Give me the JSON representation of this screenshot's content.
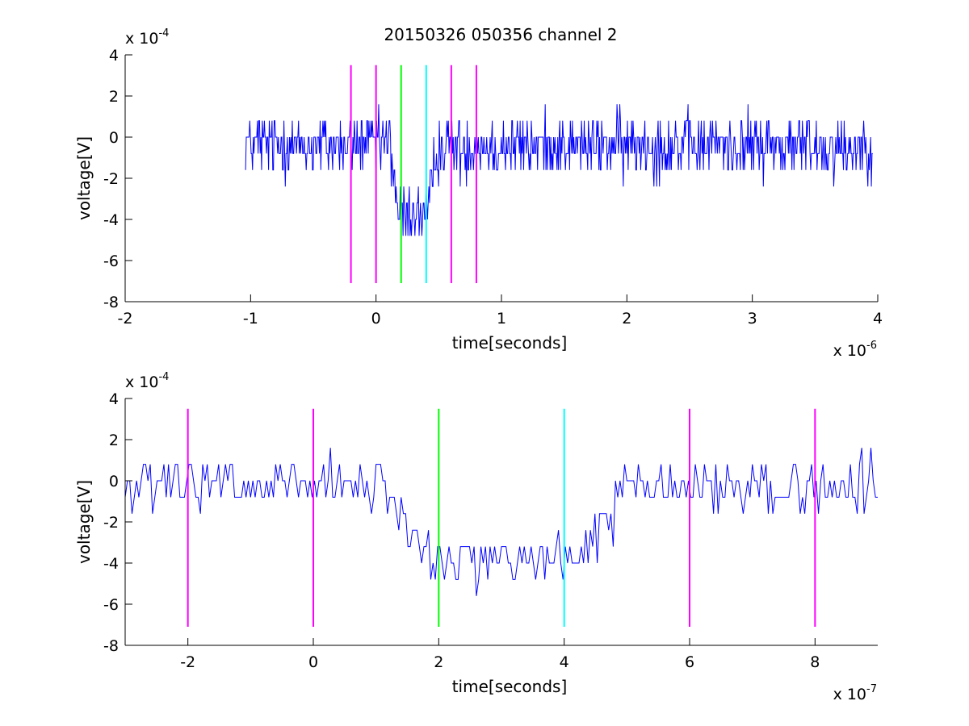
{
  "figure": {
    "title": "20150326 050356 channel 2"
  },
  "chart_data": [
    {
      "type": "line",
      "xlabel": "time[seconds]",
      "ylabel": "voltage[V]",
      "x_multiplier": {
        "base": "x 10",
        "exp": "-6"
      },
      "y_multiplier": {
        "base": "x 10",
        "exp": "-4"
      },
      "xlim": [
        -2e-06,
        4e-06
      ],
      "ylim": [
        -0.0008,
        0.0004
      ],
      "x_ticks": [
        -2e-06,
        -1e-06,
        0,
        1e-06,
        2e-06,
        3e-06,
        4e-06
      ],
      "x_tick_labels": [
        "-2",
        "-1",
        "0",
        "1",
        "2",
        "3",
        "4"
      ],
      "y_ticks": [
        -0.0008,
        -0.0006,
        -0.0004,
        -0.0002,
        0,
        0.0002,
        0.0004
      ],
      "y_tick_labels": [
        "-8",
        "-6",
        "-4",
        "-2",
        "0",
        "2",
        "4"
      ],
      "grid": false,
      "signal": {
        "color": "#0000ff",
        "x_start": -1.04e-06,
        "x_end": 3.96e-06,
        "baseline": -4e-05,
        "dip_start": 1.5e-07,
        "dip_end": 4.5e-07,
        "dip_level": -0.00038,
        "noise_amplitude": 0.00014,
        "quantum": 8e-05
      },
      "markers": [
        {
          "x": -2e-07,
          "color": "#ff00ff",
          "y_range": [
            -0.00071,
            0.00035
          ]
        },
        {
          "x": 0,
          "color": "#ff00ff",
          "y_range": [
            -0.00071,
            0.00035
          ]
        },
        {
          "x": 2e-07,
          "color": "#00ff00",
          "y_range": [
            -0.00071,
            0.00035
          ]
        },
        {
          "x": 4e-07,
          "color": "#00ffff",
          "y_range": [
            -0.00071,
            0.00035
          ]
        },
        {
          "x": 6e-07,
          "color": "#ff00ff",
          "y_range": [
            -0.00071,
            0.00035
          ]
        },
        {
          "x": 8e-07,
          "color": "#ff00ff",
          "y_range": [
            -0.00071,
            0.00035
          ]
        }
      ]
    },
    {
      "type": "line",
      "xlabel": "time[seconds]",
      "ylabel": "voltage[V]",
      "x_multiplier": {
        "base": "x 10",
        "exp": "-7"
      },
      "y_multiplier": {
        "base": "x 10",
        "exp": "-4"
      },
      "xlim": [
        -3e-07,
        9e-07
      ],
      "ylim": [
        -0.0008,
        0.0004
      ],
      "x_ticks": [
        -2e-07,
        0,
        2e-07,
        4e-07,
        6e-07,
        8e-07
      ],
      "x_tick_labels": [
        "-2",
        "0",
        "2",
        "4",
        "6",
        "8"
      ],
      "y_ticks": [
        -0.0008,
        -0.0006,
        -0.0004,
        -0.0002,
        0,
        0.0002,
        0.0004
      ],
      "y_tick_labels": [
        "-8",
        "-6",
        "-4",
        "-2",
        "0",
        "2",
        "4"
      ],
      "grid": false,
      "signal": {
        "color": "#0000ff",
        "x_start": -3e-07,
        "x_end": 9e-07,
        "baseline": -3e-05,
        "dip_start": 1.5e-07,
        "dip_end": 4.6e-07,
        "dip_level": -0.00039,
        "noise_amplitude": 0.00012,
        "quantum": 8e-05
      },
      "markers": [
        {
          "x": -2e-07,
          "color": "#ff00ff",
          "y_range": [
            -0.00071,
            0.00035
          ]
        },
        {
          "x": 0,
          "color": "#ff00ff",
          "y_range": [
            -0.00071,
            0.00035
          ]
        },
        {
          "x": 2e-07,
          "color": "#00ff00",
          "y_range": [
            -0.00071,
            0.00035
          ]
        },
        {
          "x": 4e-07,
          "color": "#00ffff",
          "y_range": [
            -0.00071,
            0.00035
          ]
        },
        {
          "x": 6e-07,
          "color": "#ff00ff",
          "y_range": [
            -0.00071,
            0.00035
          ]
        },
        {
          "x": 8e-07,
          "color": "#ff00ff",
          "y_range": [
            -0.00071,
            0.00035
          ]
        }
      ]
    }
  ]
}
